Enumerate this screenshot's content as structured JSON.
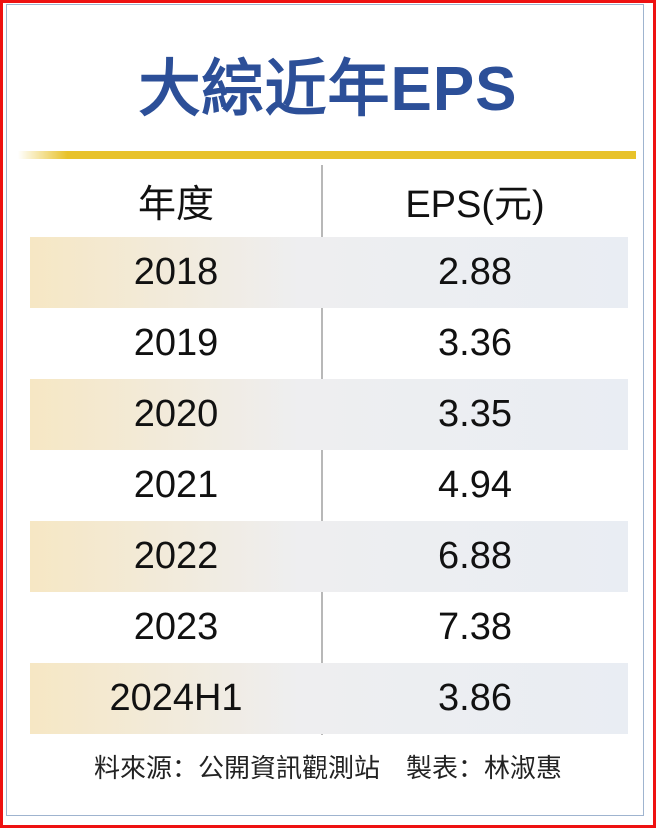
{
  "title": "大綜近年EPS",
  "table": {
    "headers": [
      "年度",
      "EPS(元)"
    ],
    "rows": [
      {
        "year": "2018",
        "eps": "2.88"
      },
      {
        "year": "2019",
        "eps": "3.36"
      },
      {
        "year": "2020",
        "eps": "3.35"
      },
      {
        "year": "2021",
        "eps": "4.94"
      },
      {
        "year": "2022",
        "eps": "6.88"
      },
      {
        "year": "2023",
        "eps": "7.38"
      },
      {
        "year": "2024H1",
        "eps": "3.86"
      }
    ]
  },
  "footer": "料來源：公開資訊觀測站　製表：林淑惠",
  "colors": {
    "title": "#2c4f98",
    "accent_bar": "#e8c22a",
    "border": "#ee1111"
  }
}
